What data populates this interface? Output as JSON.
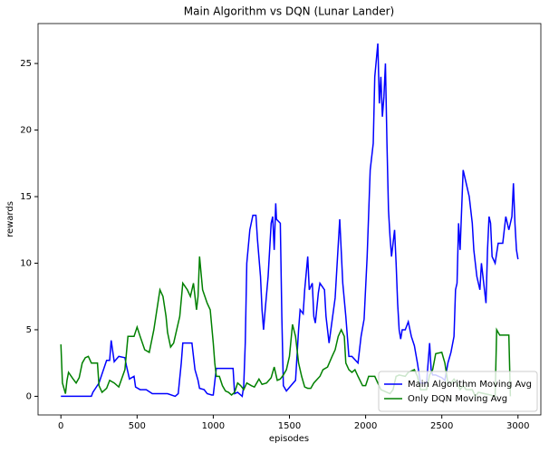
{
  "chart_data": {
    "type": "line",
    "title": "Main Algorithm vs DQN (Lunar Lander)",
    "x_label": "episodes",
    "y_label": "rewards",
    "xlim": [
      -150,
      3150
    ],
    "ylim": [
      -1.4,
      28
    ],
    "xticks": [
      0,
      500,
      1000,
      1500,
      2000,
      2500,
      3000
    ],
    "yticks": [
      0,
      5,
      10,
      15,
      20,
      25
    ],
    "legend": "lower right",
    "series": [
      {
        "name": "Main Algorithm Moving Avg",
        "color": "#0000ff",
        "x": [
          0,
          200,
          210,
          250,
          300,
          320,
          330,
          350,
          380,
          420,
          430,
          450,
          480,
          490,
          520,
          560,
          600,
          650,
          700,
          750,
          770,
          790,
          800,
          860,
          880,
          900,
          910,
          940,
          960,
          990,
          1000,
          1020,
          1130,
          1140,
          1160,
          1190,
          1200,
          1210,
          1220,
          1240,
          1260,
          1280,
          1290,
          1310,
          1320,
          1330,
          1340,
          1360,
          1380,
          1390,
          1400,
          1410,
          1415,
          1440,
          1450,
          1460,
          1480,
          1510,
          1540,
          1560,
          1570,
          1590,
          1600,
          1620,
          1630,
          1650,
          1660,
          1670,
          1690,
          1700,
          1730,
          1740,
          1760,
          1800,
          1830,
          1850,
          1870,
          1890,
          1910,
          1950,
          1970,
          1990,
          2010,
          2030,
          2050,
          2060,
          2080,
          2090,
          2100,
          2110,
          2120,
          2130,
          2140,
          2150,
          2160,
          2170,
          2190,
          2200,
          2210,
          2220,
          2230,
          2240,
          2260,
          2280,
          2300,
          2320,
          2340,
          2360,
          2380,
          2400,
          2420,
          2430,
          2440,
          2460,
          2480,
          2500,
          2520,
          2540,
          2560,
          2580,
          2590,
          2600,
          2610,
          2620,
          2640,
          2660,
          2680,
          2700,
          2710,
          2730,
          2750,
          2760,
          2770,
          2790,
          2800,
          2810,
          2820,
          2830,
          2850,
          2870,
          2900,
          2920,
          2940,
          2960,
          2970,
          2980,
          2990,
          3000
        ],
        "values": [
          0,
          0,
          0.3,
          1,
          2.7,
          2.7,
          4.2,
          2.6,
          3,
          2.9,
          2.3,
          1.3,
          1.5,
          0.7,
          0.5,
          0.5,
          0.2,
          0.2,
          0.2,
          0,
          0.2,
          2.5,
          4,
          4,
          2,
          1.2,
          0.6,
          0.5,
          0.2,
          0.1,
          0.1,
          2.1,
          2.1,
          0.2,
          0.3,
          0,
          0.8,
          4,
          10,
          12.5,
          13.6,
          13.6,
          11.8,
          9,
          6.5,
          5,
          6.4,
          9,
          13,
          13.5,
          11,
          14.5,
          13.3,
          13,
          6,
          0.8,
          0.4,
          0.8,
          1.2,
          5,
          6.5,
          6.2,
          8,
          10.5,
          8,
          8.5,
          6,
          5.5,
          7.8,
          8.5,
          8,
          6,
          4,
          7.4,
          13.3,
          8.5,
          6,
          3,
          3,
          2.5,
          4.5,
          5.8,
          10.5,
          17,
          19,
          24,
          26.5,
          22,
          24,
          21,
          22.5,
          25,
          19,
          14,
          12,
          10.5,
          12.5,
          10,
          7,
          5,
          4.3,
          5,
          5,
          5.6,
          4.5,
          3.8,
          2.5,
          1,
          1,
          1,
          4,
          2,
          1.6,
          1.6,
          1.5,
          1.4,
          1.2,
          2.5,
          3.3,
          4.5,
          8,
          8.5,
          13,
          11,
          17,
          16,
          15,
          13,
          11,
          9,
          8,
          10,
          9,
          7,
          11,
          13.5,
          13,
          10.5,
          10,
          11.5,
          11.5,
          13.5,
          12.5,
          13.5,
          16,
          13,
          11,
          10.3
        ]
      },
      {
        "name": "Only DQN Moving Avg",
        "color": "#008000",
        "x": [
          0,
          10,
          30,
          40,
          50,
          80,
          100,
          120,
          140,
          160,
          180,
          200,
          240,
          250,
          270,
          300,
          320,
          350,
          380,
          420,
          440,
          460,
          480,
          500,
          520,
          550,
          580,
          610,
          630,
          650,
          670,
          690,
          700,
          720,
          740,
          780,
          800,
          830,
          850,
          870,
          890,
          900,
          910,
          930,
          960,
          980,
          1000,
          1010,
          1020,
          1040,
          1060,
          1080,
          1100,
          1120,
          1140,
          1160,
          1180,
          1200,
          1220,
          1250,
          1270,
          1300,
          1320,
          1350,
          1380,
          1400,
          1420,
          1440,
          1460,
          1480,
          1500,
          1520,
          1540,
          1560,
          1580,
          1600,
          1620,
          1640,
          1660,
          1700,
          1720,
          1750,
          1780,
          1800,
          1820,
          1840,
          1860,
          1870,
          1890,
          1910,
          1930,
          1950,
          1980,
          2000,
          2020,
          2060,
          2100,
          2140,
          2160,
          2180,
          2200,
          2220,
          2260,
          2280,
          2320,
          2340,
          2360,
          2400,
          2420,
          2440,
          2460,
          2500,
          2520,
          2540,
          2560,
          2580,
          2600,
          2620,
          2640,
          2660,
          2700,
          2720,
          2740,
          2780,
          2820,
          2840,
          2850,
          2860,
          2880,
          2940,
          2950
        ],
        "values": [
          3.9,
          1,
          0.2,
          1.2,
          1.8,
          1.3,
          1,
          1.4,
          2.5,
          2.9,
          3,
          2.5,
          2.5,
          0.8,
          0.3,
          0.6,
          1.2,
          1,
          0.7,
          2,
          4.5,
          4.5,
          4.5,
          5.2,
          4.5,
          3.5,
          3.3,
          5,
          6.5,
          8,
          7.5,
          6,
          4.8,
          3.7,
          4,
          6,
          8.5,
          8,
          7.5,
          8.5,
          6.5,
          7.5,
          10.5,
          8,
          7,
          6.5,
          4,
          2.5,
          1.5,
          1.5,
          0.8,
          0.4,
          0.3,
          0.1,
          0.3,
          1,
          0.8,
          0.5,
          1,
          0.8,
          0.7,
          1.3,
          0.9,
          1,
          1.4,
          2.2,
          1.2,
          1.3,
          1.6,
          2,
          3,
          5.4,
          4.5,
          2.5,
          1.5,
          0.7,
          0.6,
          0.6,
          1,
          1.5,
          2,
          2.2,
          3,
          3.5,
          4.5,
          5,
          4.5,
          2.5,
          2,
          1.8,
          2,
          1.5,
          0.8,
          0.8,
          1.5,
          1.5,
          0.5,
          0.3,
          0.2,
          0.5,
          1.5,
          1.6,
          1.5,
          1.8,
          2,
          1.5,
          0.5,
          0.5,
          1.6,
          2,
          3.2,
          3.3,
          2.5,
          1,
          1,
          1.3,
          1,
          0.5,
          0.8,
          0.5,
          0.5,
          0,
          0.3,
          0.2,
          0.1,
          0,
          0,
          5,
          4.6,
          4.6,
          0
        ]
      }
    ]
  }
}
